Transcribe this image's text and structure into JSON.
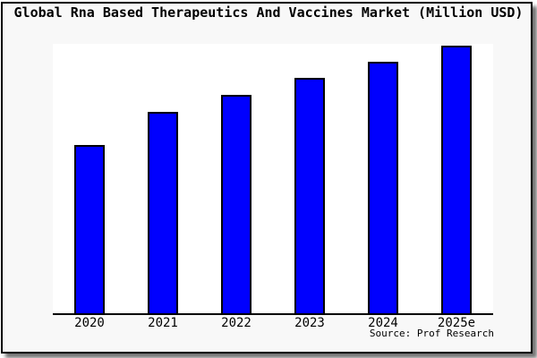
{
  "title": "Global Rna Based Therapeutics And Vaccines Market (Million USD)",
  "source": "Source: Prof Research",
  "colors": {
    "bar_fill": "#0000fe",
    "bar_border": "#000000",
    "frame_border": "#000000",
    "frame_background": "#f8f8f8",
    "plot_background": "#ffffff",
    "axis": "#000000",
    "shadow_gray": "#8a8a8a",
    "text": "#000000"
  },
  "chart_data": {
    "type": "bar",
    "title": "Global Rna Based Therapeutics And Vaccines Market (Million USD)",
    "categories": [
      "2020",
      "2021",
      "2022",
      "2023",
      "2024",
      "2025e"
    ],
    "values": [
      62.7,
      75.1,
      81.5,
      87.8,
      93.8,
      100
    ],
    "values_note": "No numeric y-axis is shown; values are relative bar heights indexed to 2025e = 100",
    "xlabel": "",
    "ylabel": "",
    "ylim": [
      0,
      100.5
    ],
    "grid": false,
    "legend": false,
    "bar_color": "#0000fe",
    "source": "Source: Prof Research"
  }
}
